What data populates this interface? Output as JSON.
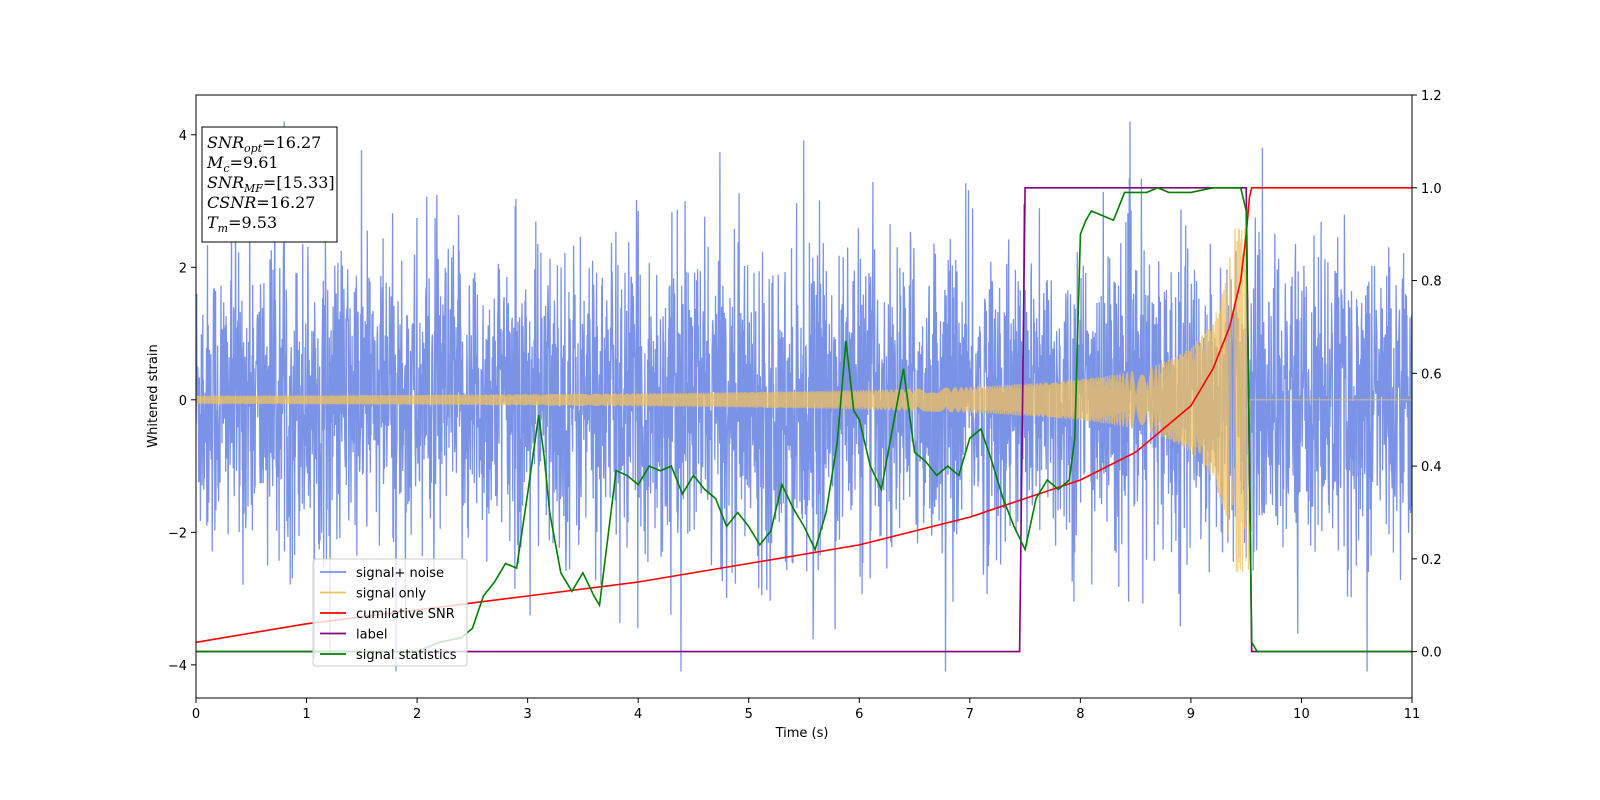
{
  "chart_data": {
    "type": "line",
    "title": "",
    "xlabel": "Time (s)",
    "ylabel": "Whitened strain",
    "xlim": [
      0,
      11
    ],
    "ylim": [
      -4.5,
      4.6
    ],
    "y2lim": [
      -0.1,
      1.2
    ],
    "x_ticks": [
      "0",
      "1",
      "2",
      "3",
      "4",
      "5",
      "6",
      "7",
      "8",
      "9",
      "10",
      "11"
    ],
    "y_ticks": [
      "−4",
      "−2",
      "0",
      "2",
      "4"
    ],
    "y2_ticks": [
      "0.0",
      "0.2",
      "0.4",
      "0.6",
      "0.8",
      "1.0",
      "1.2"
    ],
    "grid": false,
    "legend_position": "lower-left",
    "info_box": {
      "lines": [
        {
          "sym": "SNR",
          "sub": "opt",
          "val": "=16.27"
        },
        {
          "sym": "M",
          "sub": "c",
          "val": "=9.61"
        },
        {
          "sym": "SNR",
          "sub": "MF",
          "val": "=[15.33]"
        },
        {
          "sym": "CSNR",
          "sub": "",
          "val": "=16.27"
        },
        {
          "sym": "T",
          "sub": "m",
          "val": "=9.53"
        }
      ]
    },
    "series": [
      {
        "name": "signal+ noise",
        "color": "#7b93e6",
        "axis": "left",
        "style": "noise",
        "sigma": 1.15,
        "range": [
          -4.1,
          4.2
        ]
      },
      {
        "name": "signal only",
        "color": "#f0c060",
        "axis": "left",
        "style": "chirp",
        "merger_time": 9.53,
        "peak_amplitude": 2.6,
        "base_amplitude": 0.06
      },
      {
        "name": "cumilative SNR",
        "color": "#ff0000",
        "axis": "right",
        "x": [
          0,
          1,
          2,
          3,
          4,
          5,
          6,
          7,
          7.5,
          8,
          8.5,
          9,
          9.2,
          9.35,
          9.45,
          9.5,
          9.53,
          9.55,
          11
        ],
        "y": [
          0.02,
          0.06,
          0.09,
          0.12,
          0.15,
          0.19,
          0.23,
          0.29,
          0.33,
          0.37,
          0.43,
          0.53,
          0.61,
          0.7,
          0.8,
          0.9,
          0.98,
          1.0,
          1.0
        ]
      },
      {
        "name": "label",
        "color": "#800080",
        "axis": "right",
        "x": [
          0,
          7.45,
          7.5,
          9.5,
          9.55,
          11
        ],
        "y": [
          0,
          0,
          1,
          1,
          0,
          0
        ]
      },
      {
        "name": "signal statistics",
        "color": "#008000",
        "axis": "right",
        "x": [
          0,
          1,
          2,
          2.2,
          2.4,
          2.5,
          2.6,
          2.7,
          2.8,
          2.9,
          3.0,
          3.1,
          3.15,
          3.2,
          3.3,
          3.4,
          3.5,
          3.6,
          3.65,
          3.8,
          3.9,
          4.0,
          4.1,
          4.2,
          4.3,
          4.4,
          4.5,
          4.6,
          4.7,
          4.8,
          4.9,
          5.0,
          5.1,
          5.2,
          5.3,
          5.4,
          5.5,
          5.6,
          5.7,
          5.8,
          5.88,
          5.95,
          6.0,
          6.1,
          6.2,
          6.3,
          6.4,
          6.5,
          6.6,
          6.7,
          6.8,
          6.9,
          7.0,
          7.1,
          7.2,
          7.3,
          7.4,
          7.5,
          7.6,
          7.7,
          7.8,
          7.9,
          7.95,
          8.0,
          8.05,
          8.1,
          8.2,
          8.3,
          8.4,
          8.5,
          8.6,
          8.7,
          8.8,
          9.0,
          9.2,
          9.4,
          9.45,
          9.5,
          9.55,
          9.6,
          9.7,
          10,
          11
        ],
        "y": [
          0,
          0,
          0,
          0.02,
          0.03,
          0.05,
          0.12,
          0.15,
          0.19,
          0.18,
          0.34,
          0.51,
          0.42,
          0.3,
          0.17,
          0.13,
          0.17,
          0.12,
          0.1,
          0.39,
          0.38,
          0.36,
          0.4,
          0.39,
          0.4,
          0.34,
          0.38,
          0.35,
          0.33,
          0.27,
          0.3,
          0.27,
          0.23,
          0.26,
          0.36,
          0.31,
          0.27,
          0.22,
          0.3,
          0.45,
          0.67,
          0.52,
          0.5,
          0.4,
          0.35,
          0.48,
          0.61,
          0.43,
          0.41,
          0.38,
          0.4,
          0.38,
          0.46,
          0.48,
          0.41,
          0.33,
          0.27,
          0.22,
          0.33,
          0.37,
          0.35,
          0.37,
          0.46,
          0.9,
          0.93,
          0.95,
          0.94,
          0.93,
          0.99,
          0.99,
          0.99,
          1.0,
          0.99,
          0.99,
          1.0,
          1.0,
          1.0,
          0.95,
          0.02,
          0,
          0,
          0,
          0
        ]
      }
    ]
  }
}
